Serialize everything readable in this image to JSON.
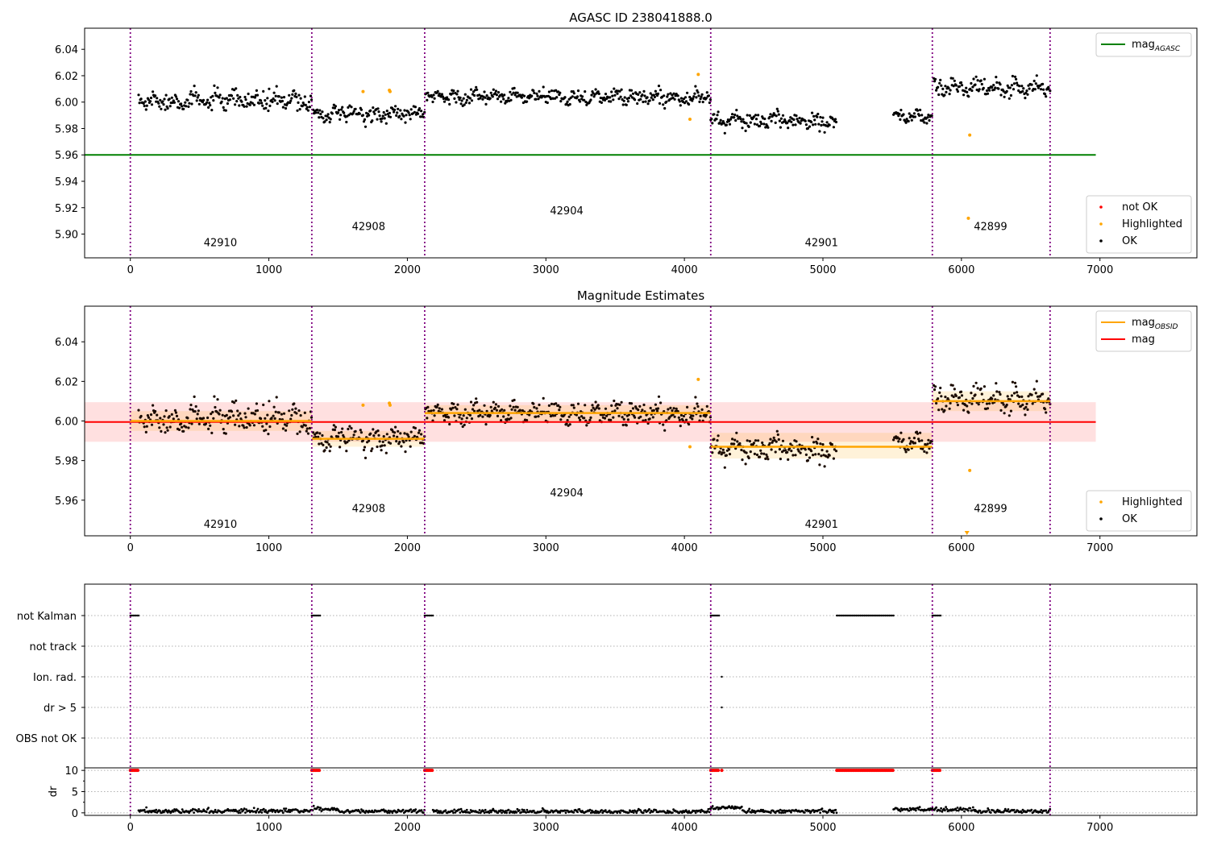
{
  "chart_data": [
    {
      "type": "scatter",
      "title": "AGASC ID 238041888.0",
      "xlabel": "",
      "ylabel": "",
      "xlim": [
        -330,
        7700
      ],
      "ylim": [
        5.882,
        6.056
      ],
      "x_ticks": [
        0,
        1000,
        2000,
        3000,
        4000,
        5000,
        6000,
        7000
      ],
      "y_ticks": [
        5.9,
        5.92,
        5.94,
        5.96,
        5.98,
        6.0,
        6.02,
        6.04
      ],
      "x_tick_labels": [
        "0",
        "1000",
        "2000",
        "3000",
        "4000",
        "5000",
        "6000",
        "7000"
      ],
      "y_tick_labels": [
        "5.90",
        "5.92",
        "5.94",
        "5.96",
        "5.98",
        "6.00",
        "6.02",
        "6.04"
      ],
      "obsid_boundaries": [
        0,
        1310,
        2125,
        4190,
        5790,
        6640
      ],
      "obsid_labels": [
        {
          "text": "42910",
          "x": 650,
          "y": 5.891
        },
        {
          "text": "42908",
          "x": 1720,
          "y": 5.903
        },
        {
          "text": "42904",
          "x": 3150,
          "y": 5.915
        },
        {
          "text": "42901",
          "x": 4990,
          "y": 5.891
        },
        {
          "text": "42899",
          "x": 6210,
          "y": 5.903
        }
      ],
      "series": [
        {
          "kind": "hline",
          "name": "mag_AGASC",
          "value": 5.96,
          "x_range": [
            -330,
            6970
          ],
          "color": "#008000"
        },
        {
          "kind": "scatter",
          "name": "OK",
          "color": "#000000",
          "segments": [
            {
              "x": [
                60,
                1310
              ],
              "mean": 6.001,
              "spread": 0.006,
              "trend": 0.0
            },
            {
              "x": [
                1320,
                2125
              ],
              "mean": 5.991,
              "spread": 0.005,
              "trend": 0.0
            },
            {
              "x": [
                2130,
                4190
              ],
              "mean": 6.004,
              "spread": 0.005,
              "trend": 0.0
            },
            {
              "x": [
                4190,
                5100
              ],
              "mean": 5.986,
              "spread": 0.005,
              "trend": 0.0
            },
            {
              "x": [
                5510,
                5790
              ],
              "mean": 5.989,
              "spread": 0.005,
              "trend": 0.0
            },
            {
              "x": [
                5800,
                6640
              ],
              "mean": 6.011,
              "spread": 0.006,
              "trend": 0.0
            }
          ]
        },
        {
          "kind": "scatter",
          "name": "Highlighted",
          "color": "#ffa500",
          "x": [
            1680,
            1870,
            1875,
            4040,
            4100,
            6050,
            6060
          ],
          "y": [
            6.008,
            6.009,
            6.008,
            5.987,
            6.021,
            5.912,
            5.975
          ]
        },
        {
          "kind": "scatter",
          "name": "not OK",
          "color": "#ff0000",
          "x": [],
          "y": []
        }
      ],
      "legend_upper": {
        "placement": "top-right",
        "entries": [
          {
            "label": "mag",
            "subscript": "AGASC",
            "color": "#008000"
          }
        ]
      },
      "legend_lower": {
        "placement": "bottom-right",
        "entries": [
          {
            "label": "not OK",
            "color": "#ff0000"
          },
          {
            "label": "Highlighted",
            "color": "#ffa500"
          },
          {
            "label": "OK",
            "color": "#000000"
          }
        ]
      }
    },
    {
      "type": "scatter",
      "title": "Magnitude Estimates",
      "xlabel": "",
      "ylabel": "",
      "xlim": [
        -330,
        7700
      ],
      "ylim": [
        5.942,
        6.058
      ],
      "x_ticks": [
        0,
        1000,
        2000,
        3000,
        4000,
        5000,
        6000,
        7000
      ],
      "y_ticks": [
        5.96,
        5.98,
        6.0,
        6.02,
        6.04
      ],
      "x_tick_labels": [
        "0",
        "1000",
        "2000",
        "3000",
        "4000",
        "5000",
        "6000",
        "7000"
      ],
      "y_tick_labels": [
        "5.96",
        "5.98",
        "6.00",
        "6.02",
        "6.04"
      ],
      "obsid_boundaries": [
        0,
        1310,
        2125,
        4190,
        5790,
        6640
      ],
      "obsid_labels": [
        {
          "text": "42910",
          "x": 650,
          "y": 5.946
        },
        {
          "text": "42908",
          "x": 1720,
          "y": 5.954
        },
        {
          "text": "42904",
          "x": 3150,
          "y": 5.962
        },
        {
          "text": "42901",
          "x": 4990,
          "y": 5.946
        },
        {
          "text": "42899",
          "x": 6210,
          "y": 5.954
        }
      ],
      "mag": {
        "value": 5.9995,
        "band": [
          5.9895,
          6.0095
        ],
        "x_range": [
          -330,
          6970
        ],
        "color": "#ff0000"
      },
      "mag_obsid": [
        {
          "x": [
            0,
            1310
          ],
          "value": 6.0,
          "band": [
            5.995,
            6.005
          ]
        },
        {
          "x": [
            1310,
            2125
          ],
          "value": 5.991,
          "band": [
            5.987,
            5.995
          ]
        },
        {
          "x": [
            2125,
            4190
          ],
          "value": 6.004,
          "band": [
            6.0,
            6.008
          ]
        },
        {
          "x": [
            4190,
            5790
          ],
          "value": 5.987,
          "band": [
            5.981,
            5.994
          ]
        },
        {
          "x": [
            5790,
            6640
          ],
          "value": 6.01,
          "band": [
            6.005,
            6.015
          ]
        }
      ],
      "series": [
        {
          "kind": "scatter",
          "name": "OK",
          "color": "#000000"
        },
        {
          "kind": "scatter",
          "name": "Highlighted",
          "color": "#ffa500",
          "x": [
            1680,
            1870,
            1875,
            4040,
            4100,
            6060
          ],
          "y": [
            6.008,
            6.009,
            6.008,
            5.987,
            6.021,
            5.975
          ]
        }
      ],
      "legend_upper": {
        "placement": "top-right",
        "entries": [
          {
            "label": "mag",
            "subscript": "OBSID",
            "color": "#ffa500"
          },
          {
            "label": "mag",
            "subscript": "",
            "color": "#ff0000"
          }
        ]
      },
      "legend_lower": {
        "placement": "bottom-right",
        "entries": [
          {
            "label": "Highlighted",
            "color": "#ffa500"
          },
          {
            "label": "OK",
            "color": "#000000"
          }
        ]
      }
    },
    {
      "type": "scatter",
      "title": "",
      "xlabel": "",
      "ylabel": "",
      "xlim": [
        -330,
        7700
      ],
      "x_ticks": [
        0,
        1000,
        2000,
        3000,
        4000,
        5000,
        6000,
        7000
      ],
      "x_tick_labels": [
        "0",
        "1000",
        "2000",
        "3000",
        "4000",
        "5000",
        "6000",
        "7000"
      ],
      "flags": [
        "not Kalman",
        "not track",
        "Ion. rad.",
        "dr > 5",
        "OBS not OK"
      ],
      "flag_ranges": [
        {
          "flag": "not Kalman",
          "x": [
            [
              0,
              60
            ],
            [
              1310,
              1370
            ],
            [
              2125,
              2185
            ],
            [
              4190,
              4250
            ],
            [
              5100,
              5510
            ],
            [
              5790,
              5850
            ]
          ]
        },
        {
          "flag": "not track",
          "x": []
        },
        {
          "flag": "Ion. rad.",
          "x": [
            [
              4270,
              4272
            ]
          ]
        },
        {
          "flag": "dr > 5",
          "x": [
            [
              4270,
              4272
            ]
          ]
        },
        {
          "flag": "OBS not OK",
          "x": []
        }
      ],
      "dr_panel": {
        "ylabel": "dr",
        "ylim": [
          -0.6,
          10.6
        ],
        "y_ticks": [
          0,
          5,
          10
        ],
        "y_tick_labels": [
          "0",
          "5",
          "10"
        ],
        "clipped_value": 10,
        "clipped_ranges": [
          [
            0,
            60
          ],
          [
            1310,
            1370
          ],
          [
            2125,
            2185
          ],
          [
            4190,
            4250
          ],
          [
            4270,
            4272
          ],
          [
            5100,
            5510
          ],
          [
            5790,
            5850
          ]
        ],
        "dr_segments": [
          {
            "x": [
              60,
              1310
            ],
            "level": 0.4
          },
          {
            "x": [
              1310,
              1500
            ],
            "level": 0.9
          },
          {
            "x": [
              1500,
              2125
            ],
            "level": 0.4
          },
          {
            "x": [
              2185,
              4190
            ],
            "level": 0.3
          },
          {
            "x": [
              4190,
              4420
            ],
            "level": 1.2
          },
          {
            "x": [
              4420,
              5100
            ],
            "level": 0.4
          },
          {
            "x": [
              5510,
              5790
            ],
            "level": 0.8
          },
          {
            "x": [
              5790,
              6100
            ],
            "level": 0.8
          },
          {
            "x": [
              6100,
              6640
            ],
            "level": 0.4
          }
        ]
      },
      "obsid_boundaries": [
        0,
        1310,
        2125,
        4190,
        5790,
        6640
      ]
    }
  ]
}
